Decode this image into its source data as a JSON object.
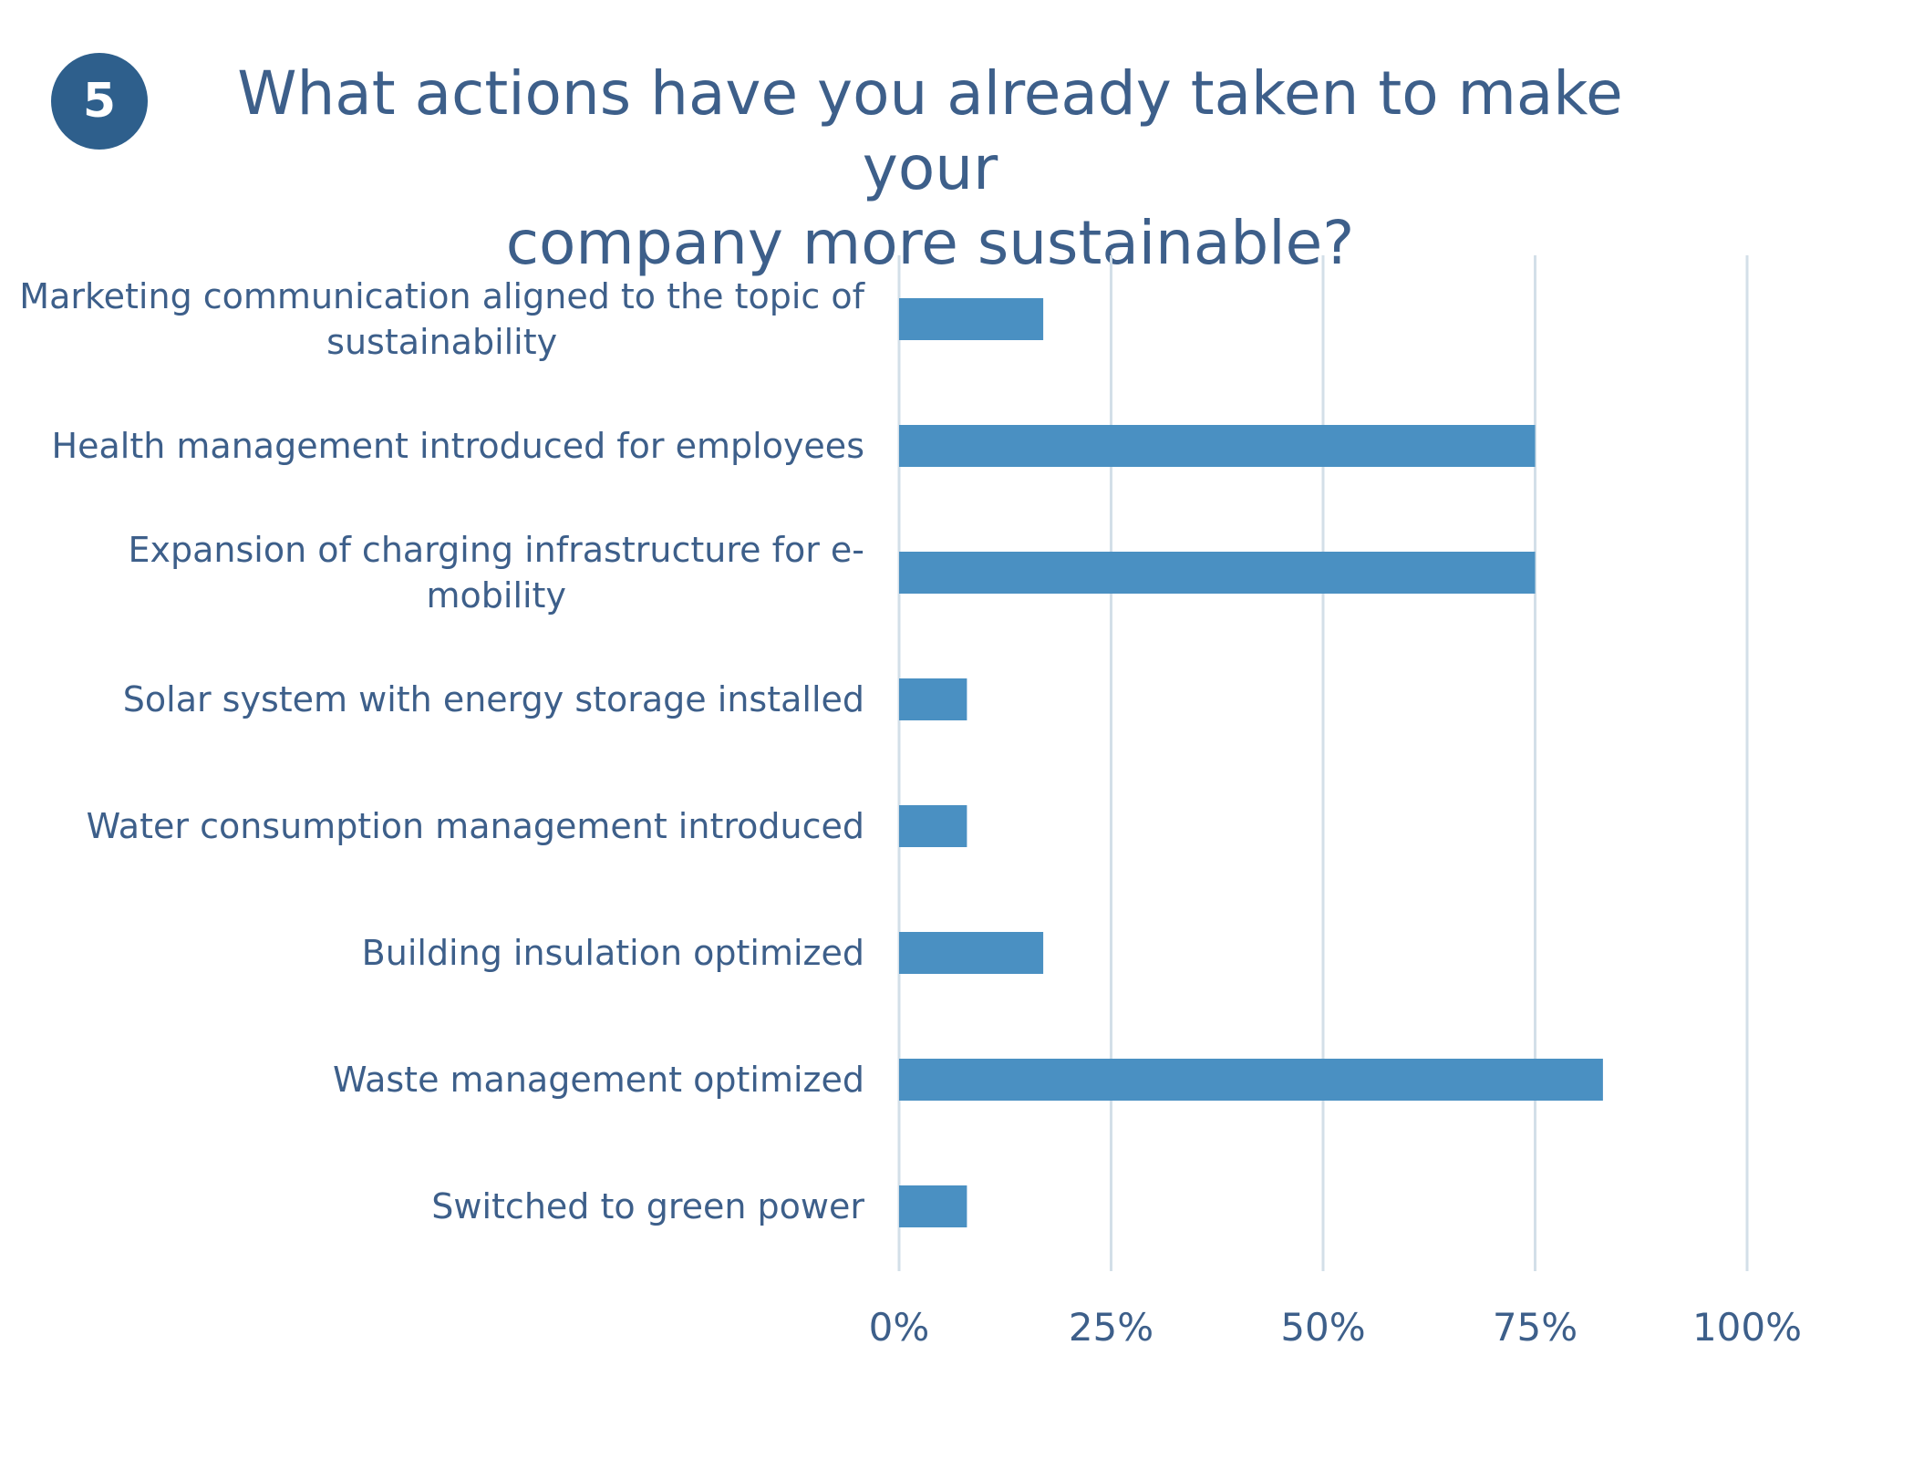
{
  "badge": {
    "number": "5"
  },
  "title": {
    "line1": "What actions have you already taken to make your",
    "line2": "company more sustainable?"
  },
  "chart_data": {
    "type": "bar",
    "orientation": "horizontal",
    "categories": [
      [
        "Marketing communication aligned to the topic of",
        "sustainability"
      ],
      [
        "Health management introduced for employees"
      ],
      [
        "Expansion of charging infrastructure for e-",
        "mobility"
      ],
      [
        "Solar system with energy storage installed"
      ],
      [
        "Water consumption management introduced"
      ],
      [
        "Building insulation optimized"
      ],
      [
        "Waste management optimized"
      ],
      [
        "Switched to green power"
      ]
    ],
    "values": [
      17,
      75,
      75,
      8,
      8,
      17,
      83,
      8
    ],
    "value_unit": "%",
    "xlim": [
      0,
      100
    ],
    "xticks": [
      "0%",
      "25%",
      "50%",
      "75%",
      "100%"
    ],
    "grid": "vertical",
    "bar_color": "#4a90c2",
    "grid_color": "#d3dfe8",
    "legend": "none"
  }
}
